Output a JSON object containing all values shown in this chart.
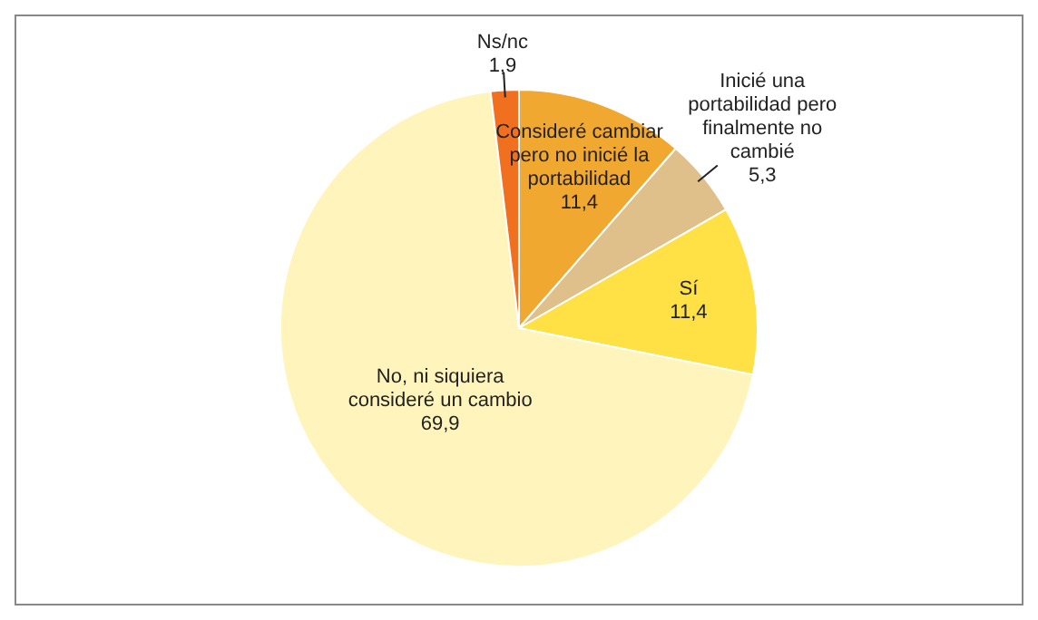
{
  "chart_data": {
    "type": "pie",
    "categories": [
      "Consideré cambiar pero no inicié la portabilidad",
      "Inicié una portabilidad pero finalmente no cambié",
      "Sí",
      "No, ni siquiera consideré un cambio",
      "Ns/nc"
    ],
    "values": [
      11.4,
      5.3,
      11.4,
      69.9,
      1.9
    ],
    "value_labels": [
      "11,4",
      "5,3",
      "11,4",
      "69,9",
      "1,9"
    ],
    "colors": [
      "#f0a830",
      "#dfc08a",
      "#ffe045",
      "#fff4bb",
      "#f07020"
    ],
    "legend": false
  }
}
